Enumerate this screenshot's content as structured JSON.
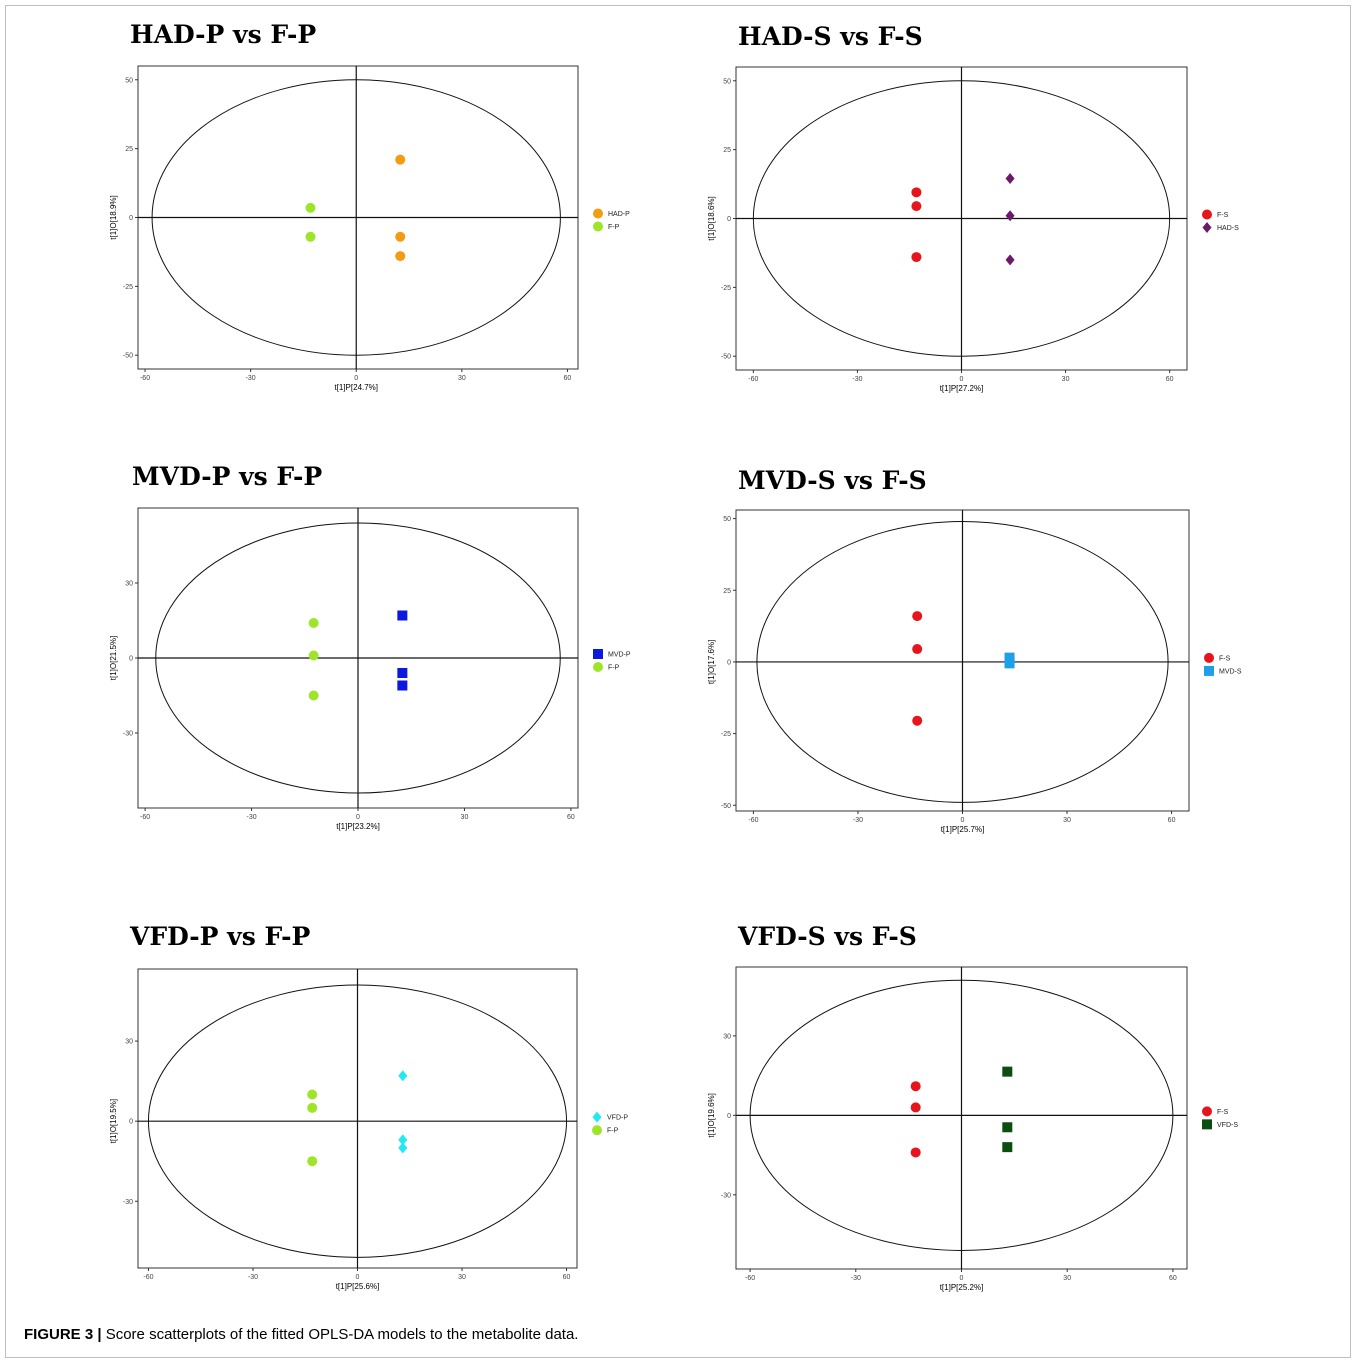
{
  "caption": {
    "label": "FIGURE 3 |",
    "text": " Score scatterplots of the fitted OPLS-DA models to the metabolite data."
  },
  "chart_data": [
    {
      "type": "scatter",
      "title": "HAD-P vs F-P",
      "xlabel": "t[1]P[24.7%]",
      "ylabel": "t[1]O[18.9%]",
      "xlim": [
        -62,
        63
      ],
      "ylim": [
        -55,
        55
      ],
      "xticks": [
        -60,
        -30,
        0,
        30,
        60
      ],
      "yticks": [
        -50,
        -25,
        0,
        25,
        50
      ],
      "ellipse": {
        "rx": 58,
        "ry": 50
      },
      "legend_position": "right",
      "series": [
        {
          "name": "HAD-P",
          "color": "#f39c12",
          "marker": "circle",
          "points": [
            [
              12.5,
              21
            ],
            [
              12.5,
              -7
            ],
            [
              12.5,
              -14
            ]
          ]
        },
        {
          "name": "F-P",
          "color": "#9ee52a",
          "marker": "circle",
          "points": [
            [
              -13,
              3.5
            ],
            [
              -13,
              -7
            ]
          ]
        }
      ]
    },
    {
      "type": "scatter",
      "title": "HAD-S vs F-S",
      "xlabel": "t[1]P[27.2%]",
      "ylabel": "t[1]O[18.6%]",
      "xlim": [
        -65,
        65
      ],
      "ylim": [
        -55,
        55
      ],
      "xticks": [
        -60,
        -30,
        0,
        30,
        60
      ],
      "yticks": [
        -50,
        -25,
        0,
        25,
        50
      ],
      "ellipse": {
        "rx": 60,
        "ry": 50
      },
      "legend_position": "right",
      "series": [
        {
          "name": "F-S",
          "color": "#e8141c",
          "marker": "circle",
          "points": [
            [
              -13,
              9.5
            ],
            [
              -13,
              4.5
            ],
            [
              -13,
              -14
            ]
          ]
        },
        {
          "name": "HAD-S",
          "color": "#6b1a6b",
          "marker": "diamond",
          "points": [
            [
              14,
              14.5
            ],
            [
              14,
              1
            ],
            [
              14,
              -15
            ]
          ]
        }
      ]
    },
    {
      "type": "scatter",
      "title": "MVD-P vs F-P",
      "xlabel": "t[1]P[23.2%]",
      "ylabel": "t[1]O[21.5%]",
      "xlim": [
        -62,
        62
      ],
      "ylim": [
        -60,
        60
      ],
      "xticks": [
        -60,
        -30,
        0,
        30,
        60
      ],
      "yticks": [
        -30,
        0,
        30
      ],
      "ellipse": {
        "rx": 57,
        "ry": 54
      },
      "legend_position": "right",
      "series": [
        {
          "name": "MVD-P",
          "color": "#0a18e0",
          "marker": "square",
          "points": [
            [
              12.5,
              17
            ],
            [
              12.5,
              -6
            ],
            [
              12.5,
              -11
            ]
          ]
        },
        {
          "name": "F-P",
          "color": "#9ee52a",
          "marker": "circle",
          "points": [
            [
              -12.5,
              14
            ],
            [
              -12.5,
              1
            ],
            [
              -12.5,
              -15
            ]
          ]
        }
      ]
    },
    {
      "type": "scatter",
      "title": "MVD-S vs F-S",
      "xlabel": "t[1]P[25.7%]",
      "ylabel": "t[1]O[17.6%]",
      "xlim": [
        -65,
        65
      ],
      "ylim": [
        -52,
        53
      ],
      "xticks": [
        -60,
        -30,
        0,
        30,
        60
      ],
      "yticks": [
        -50,
        -25,
        0,
        25,
        50
      ],
      "ellipse": {
        "rx": 59,
        "ry": 49
      },
      "legend_position": "right",
      "series": [
        {
          "name": "F-S",
          "color": "#e8141c",
          "marker": "circle",
          "points": [
            [
              -13,
              16
            ],
            [
              -13,
              4.5
            ],
            [
              -13,
              -20.5
            ]
          ]
        },
        {
          "name": "MVD-S",
          "color": "#1ea0e8",
          "marker": "square",
          "points": [
            [
              13.5,
              1.5
            ],
            [
              13.5,
              0.5
            ],
            [
              13.5,
              -0.5
            ]
          ]
        }
      ]
    },
    {
      "type": "scatter",
      "title": "VFD-P vs F-P",
      "xlabel": "t[1]P[25.6%]",
      "ylabel": "t[1]O[19.5%]",
      "xlim": [
        -63,
        63
      ],
      "ylim": [
        -55,
        57
      ],
      "xticks": [
        -60,
        -30,
        0,
        30,
        60
      ],
      "yticks": [
        -30,
        0,
        30
      ],
      "ellipse": {
        "rx": 60,
        "ry": 51
      },
      "legend_position": "right",
      "series": [
        {
          "name": "VFD-P",
          "color": "#22e8f2",
          "marker": "diamond",
          "points": [
            [
              13,
              17
            ],
            [
              13,
              -7
            ],
            [
              13,
              -10
            ]
          ]
        },
        {
          "name": "F-P",
          "color": "#9ee52a",
          "marker": "circle",
          "points": [
            [
              -13,
              10
            ],
            [
              -13,
              5
            ],
            [
              -13,
              -15
            ]
          ]
        }
      ]
    },
    {
      "type": "scatter",
      "title": "VFD-S vs F-S",
      "xlabel": "t[1]P[25.2%]",
      "ylabel": "t[1]O[19.6%]",
      "xlim": [
        -64,
        64
      ],
      "ylim": [
        -58,
        56
      ],
      "xticks": [
        -60,
        -30,
        0,
        30,
        60
      ],
      "yticks": [
        -30,
        0,
        30
      ],
      "ellipse": {
        "rx": 60,
        "ry": 51
      },
      "legend_position": "right",
      "series": [
        {
          "name": "F-S",
          "color": "#e8141c",
          "marker": "circle",
          "points": [
            [
              -13,
              11
            ],
            [
              -13,
              3
            ],
            [
              -13,
              -14
            ]
          ]
        },
        {
          "name": "VFD-S",
          "color": "#0c4d10",
          "marker": "square",
          "points": [
            [
              13,
              16.5
            ],
            [
              13,
              -4.5
            ],
            [
              13,
              -12
            ]
          ]
        }
      ]
    }
  ]
}
